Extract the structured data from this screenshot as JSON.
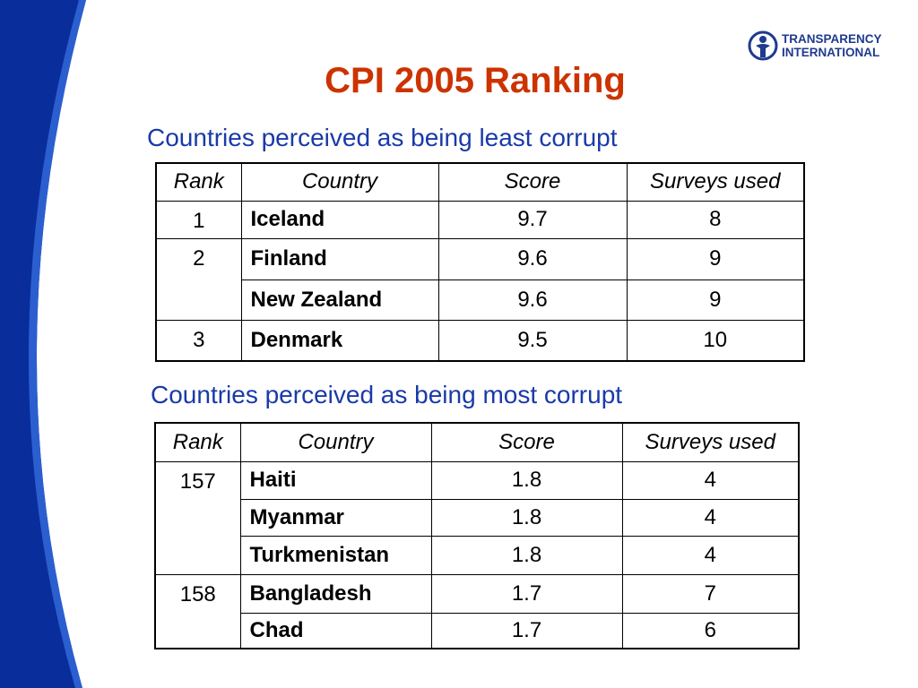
{
  "logo": {
    "line1": "TRANSPARENCY",
    "line2": "INTERNATIONAL"
  },
  "title": "CPI 2005 Ranking",
  "tables": [
    {
      "subtitle": "Countries perceived as being least corrupt",
      "header": [
        "Rank",
        "Country",
        "Score",
        "Surveys used"
      ],
      "groups": [
        {
          "rank": "1",
          "rows": [
            [
              "Iceland",
              "9.7",
              "8"
            ]
          ]
        },
        {
          "rank": "2",
          "rows": [
            [
              "Finland",
              "9.6",
              "9"
            ],
            [
              "New Zealand",
              "9.6",
              "9"
            ]
          ]
        },
        {
          "rank": "3",
          "rows": [
            [
              "Denmark",
              "9.5",
              "10"
            ]
          ]
        }
      ]
    },
    {
      "subtitle": "Countries perceived as being most corrupt",
      "header": [
        "Rank",
        "Country",
        "Score",
        "Surveys used"
      ],
      "groups": [
        {
          "rank": "157",
          "rows": [
            [
              "Haiti",
              "1.8",
              "4"
            ],
            [
              "Myanmar",
              "1.8",
              "4"
            ],
            [
              "Turkmenistan",
              "1.8",
              "4"
            ]
          ]
        },
        {
          "rank": "158",
          "rows": [
            [
              "Bangladesh",
              "1.7",
              "7"
            ],
            [
              "Chad",
              "1.7",
              "6"
            ]
          ]
        }
      ]
    }
  ]
}
